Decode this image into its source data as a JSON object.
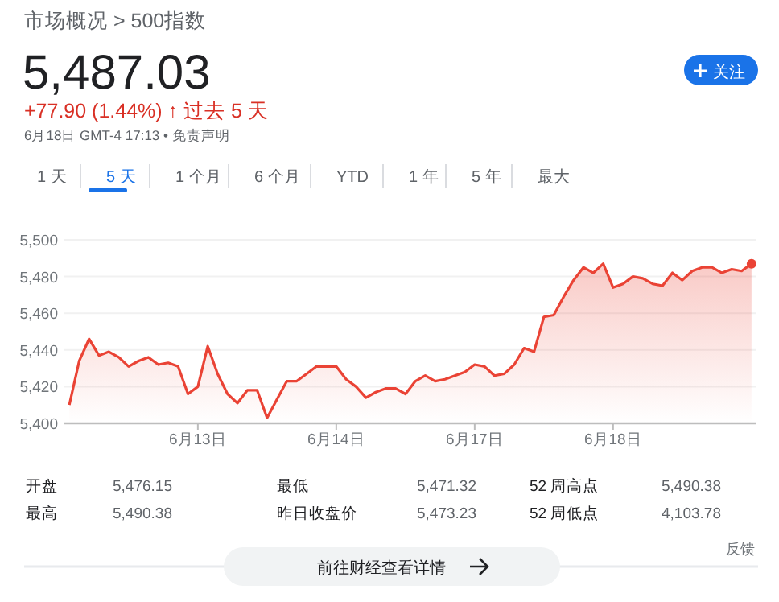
{
  "chart_data": {
    "type": "area",
    "title": "市场概况 > 500指数",
    "subtitle": "5,487.03",
    "annotations": [
      "+77.90 (1.44%) ↑ 过去 5 天",
      "6月18日 GMT-4 17:13 • 免责声明",
      "关注",
      "1 天",
      "5 天",
      "1 个月",
      "6 个月",
      "YTD",
      "1 年",
      "5 年",
      "最大",
      "开盘",
      "5,476.15",
      "最低",
      "5,471.32",
      "52 周高点",
      "5,490.38",
      "最高",
      "5,490.38",
      "昨日收盘价",
      "5,473.23",
      "52 周低点",
      "4,103.78",
      "前往财经查看详情",
      "反馈"
    ],
    "categories": [
      null,
      null,
      null,
      null,
      null,
      null,
      null,
      null,
      null,
      null,
      null,
      null,
      null,
      "6月13日",
      null,
      null,
      null,
      null,
      null,
      null,
      null,
      null,
      null,
      null,
      null,
      null,
      null,
      "6月14日",
      null,
      null,
      null,
      null,
      null,
      null,
      null,
      null,
      null,
      null,
      null,
      null,
      null,
      "6月17日",
      null,
      null,
      null,
      null,
      null,
      null,
      null,
      null,
      null,
      null,
      null,
      null,
      null,
      "6月18日",
      null,
      null,
      null,
      null,
      null,
      null,
      null,
      null,
      null,
      null,
      null,
      null,
      null,
      null
    ],
    "series": [
      {
        "color": "#ea4335",
        "values": [
          5410,
          5434,
          5446,
          5437,
          5439,
          5436,
          5431,
          5434,
          5436,
          5432,
          5433,
          5431,
          5416,
          5420,
          5442,
          5427,
          5416,
          5411,
          5418,
          5418,
          5403,
          5413,
          5423,
          5423,
          5427,
          5431,
          5431,
          5431,
          5424,
          5420,
          5414,
          5417,
          5419,
          5419,
          5416,
          5423,
          5426,
          5423,
          5424,
          5426,
          5428,
          5432,
          5431,
          5426,
          5427,
          5432,
          5441,
          5439,
          5458,
          5459,
          5469,
          5478,
          5485,
          5482,
          5487,
          5474,
          5476,
          5480,
          5479,
          5476,
          5475,
          5482,
          5478,
          5483,
          5485,
          5485,
          5482,
          5484,
          5483,
          5487
        ]
      }
    ],
    "ylim": [
      5400,
      5500
    ],
    "yticks": [
      {
        "value": 5400,
        "label": "5,400"
      },
      {
        "value": 5420,
        "label": "5,420"
      },
      {
        "value": 5440,
        "label": "5,440"
      },
      {
        "value": 5460,
        "label": "5,460"
      },
      {
        "value": 5480,
        "label": "5,480"
      },
      {
        "value": 5500,
        "label": "5,500"
      }
    ],
    "grid": "y"
  }
}
